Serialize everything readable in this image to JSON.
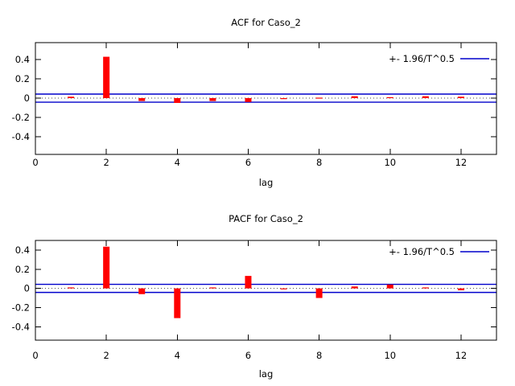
{
  "page": {
    "background": "#ffffff",
    "text_color": "#000000"
  },
  "chart_data": [
    {
      "id": "acf",
      "type": "bar",
      "title": "ACF for Caso_2",
      "xlabel": "lag",
      "ylabel": "",
      "legend": "+- 1.96/T^0.5",
      "legend_position": "top-right",
      "grid": false,
      "bar_color": "#ff0000",
      "band_color": "#0000cc",
      "zero_line": "dotted",
      "confidence_band": 0.042,
      "x": [
        1,
        2,
        3,
        4,
        5,
        6,
        7,
        8,
        9,
        10,
        11,
        12
      ],
      "values": [
        0.015,
        0.43,
        -0.03,
        -0.05,
        -0.03,
        -0.04,
        -0.005,
        0.005,
        0.02,
        0.01,
        0.02,
        0.015
      ],
      "xlim": [
        0,
        13
      ],
      "ylim": [
        -0.585,
        0.577
      ],
      "xticks": [
        0,
        2,
        4,
        6,
        8,
        10,
        12
      ],
      "yticks": [
        0.4,
        0.2,
        0,
        -0.2,
        -0.4
      ],
      "ytick_labels": [
        "0.4",
        "0.2",
        "0",
        "-0.2",
        "-0.4"
      ]
    },
    {
      "id": "pacf",
      "type": "bar",
      "title": "PACF for Caso_2",
      "xlabel": "lag",
      "ylabel": "",
      "legend": "+- 1.96/T^0.5",
      "legend_position": "top-right",
      "grid": false,
      "bar_color": "#ff0000",
      "band_color": "#0000cc",
      "zero_line": "dotted",
      "confidence_band": 0.042,
      "x": [
        1,
        2,
        3,
        4,
        5,
        6,
        7,
        8,
        9,
        10,
        11,
        12
      ],
      "values": [
        0.01,
        0.435,
        -0.06,
        -0.31,
        0.01,
        0.13,
        -0.01,
        -0.1,
        0.02,
        0.04,
        0.01,
        -0.02
      ],
      "xlim": [
        0,
        13
      ],
      "ylim": [
        -0.54,
        0.5
      ],
      "xticks": [
        0,
        2,
        4,
        6,
        8,
        10,
        12
      ],
      "yticks": [
        0.4,
        0.2,
        0,
        -0.2,
        -0.4
      ],
      "ytick_labels": [
        "0.4",
        "0.2",
        "0",
        "-0.2",
        "-0.4"
      ]
    }
  ]
}
